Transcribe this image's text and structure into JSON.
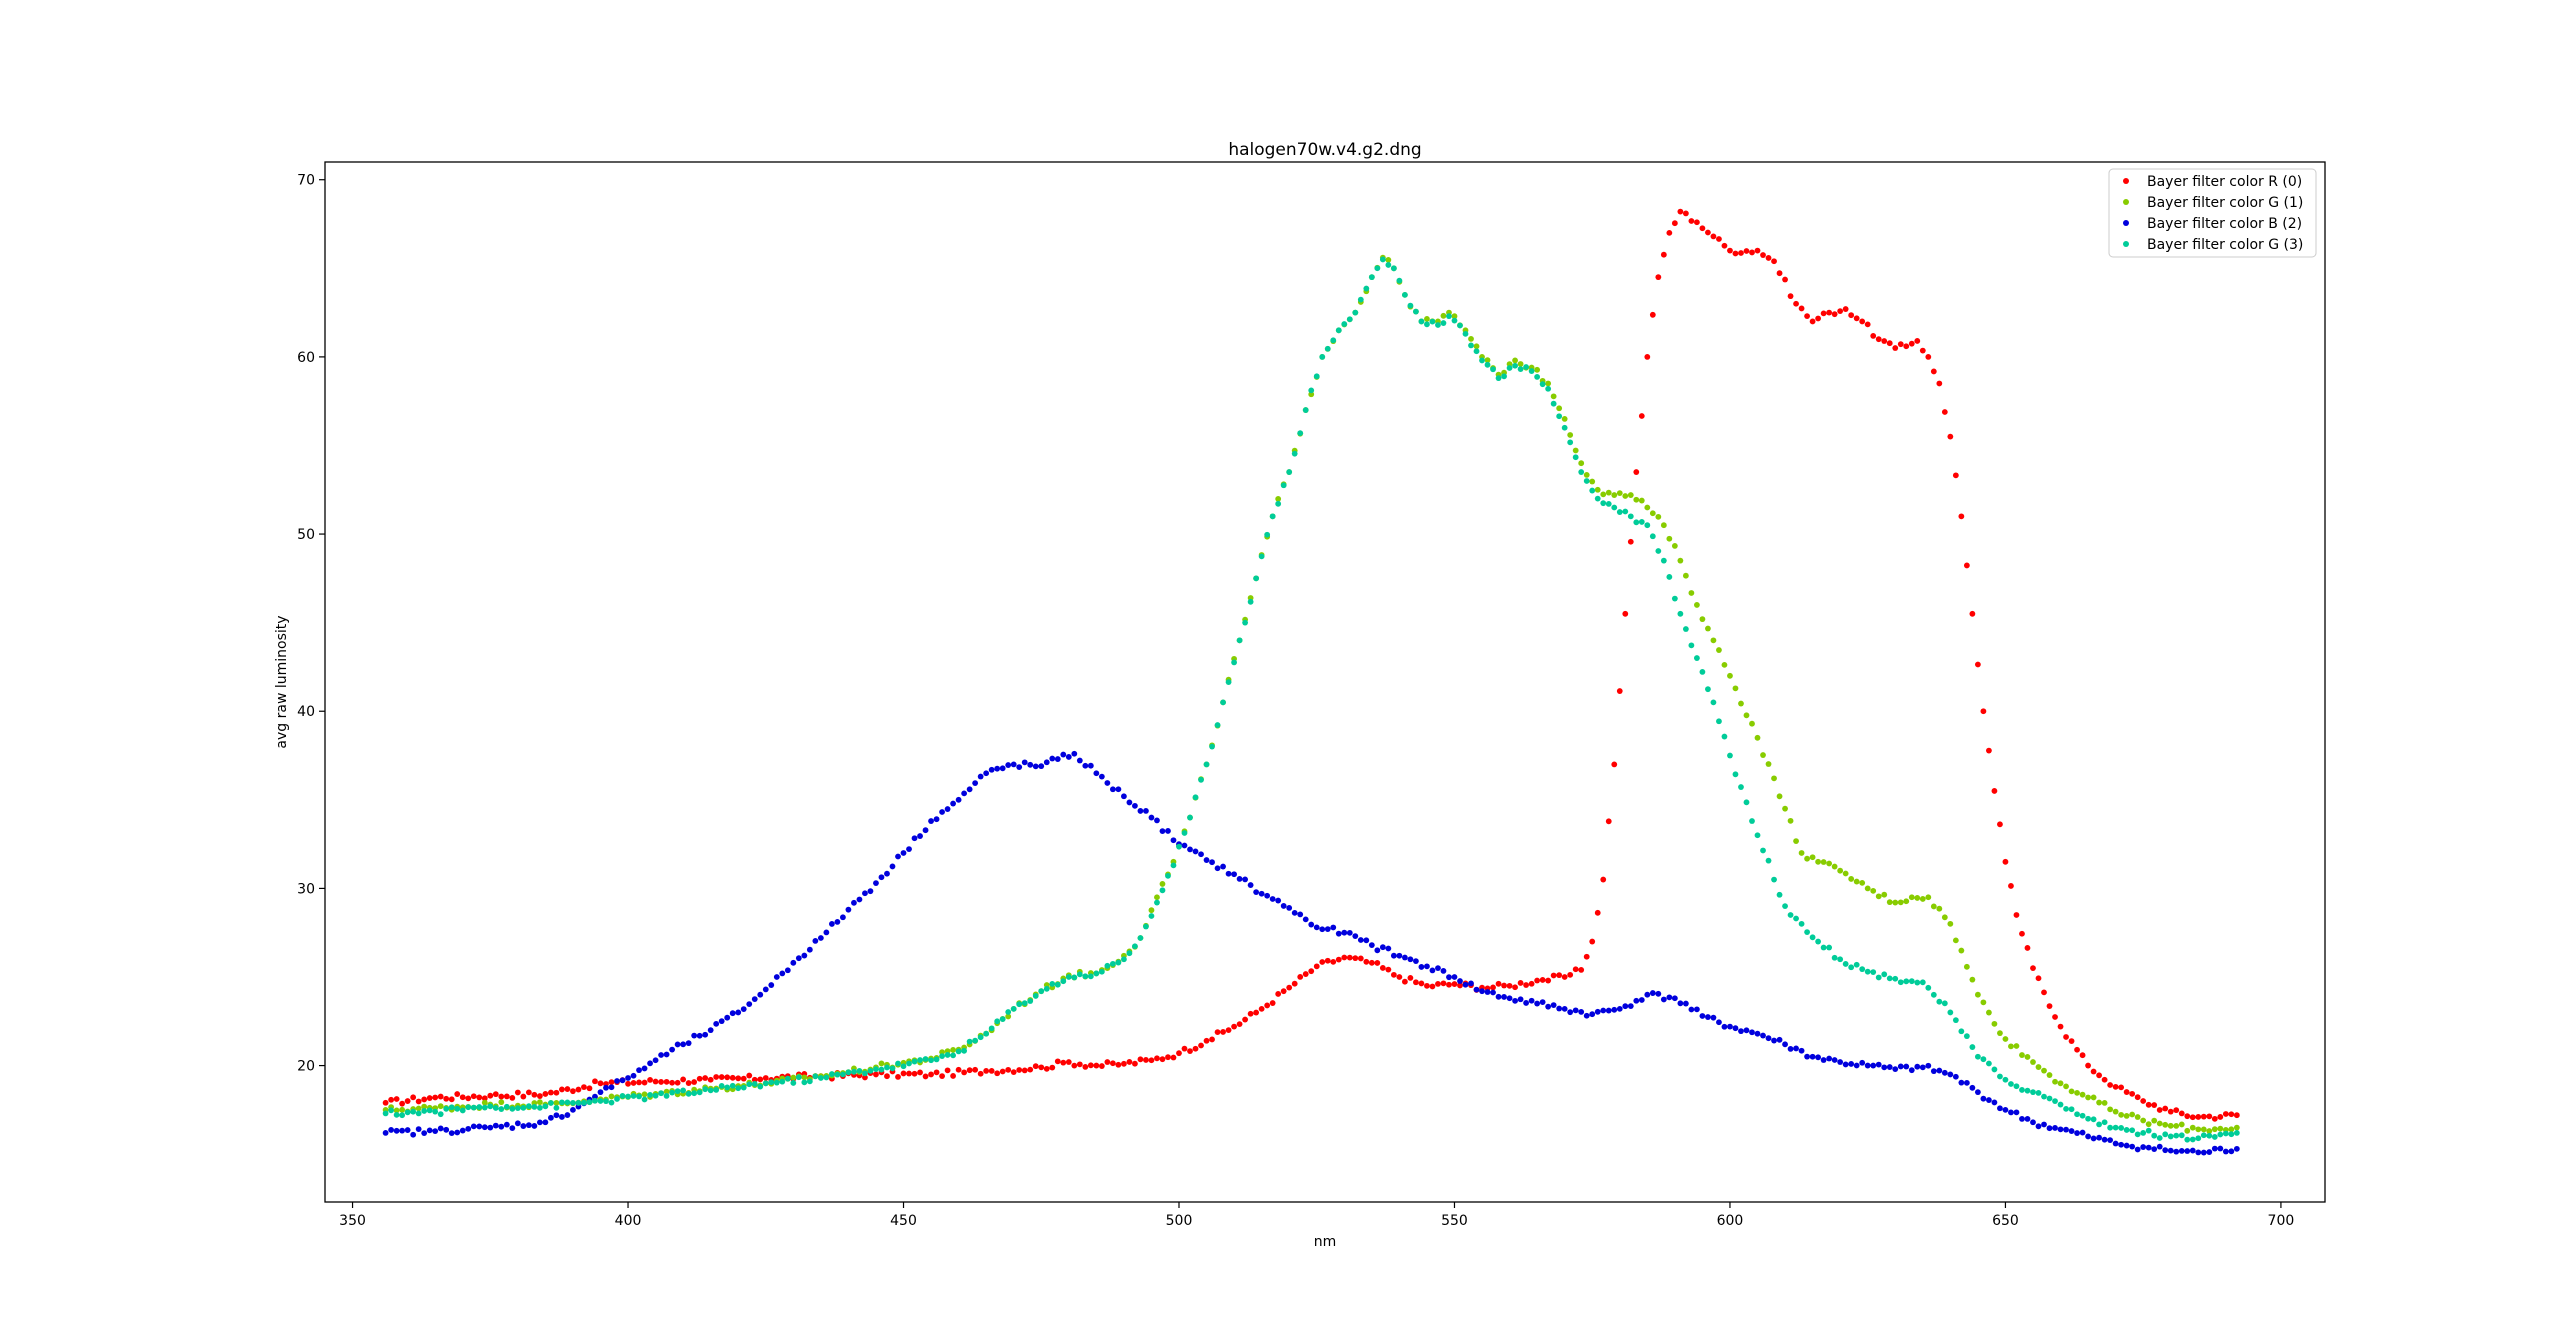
{
  "chart_data": {
    "type": "scatter",
    "title": "halogen70w.v4.g2.dng",
    "xlabel": "nm",
    "ylabel": "avg raw luminosity",
    "xlim": [
      345,
      708
    ],
    "ylim": [
      12.3,
      71.0
    ],
    "xticks": [
      350,
      400,
      450,
      500,
      550,
      600,
      650,
      700
    ],
    "yticks": [
      20,
      30,
      40,
      50,
      60,
      70
    ],
    "grid": false,
    "legend_position": "top-right",
    "series": [
      {
        "name": "Bayer filter color R (0)",
        "color": "#ff0000",
        "points": [
          [
            356,
            17.9
          ],
          [
            365,
            18.2
          ],
          [
            375,
            18.3
          ],
          [
            385,
            18.4
          ],
          [
            395,
            19.0
          ],
          [
            405,
            19.1
          ],
          [
            415,
            19.2
          ],
          [
            425,
            19.3
          ],
          [
            435,
            19.4
          ],
          [
            445,
            19.5
          ],
          [
            455,
            19.5
          ],
          [
            465,
            19.7
          ],
          [
            475,
            19.9
          ],
          [
            480,
            20.2
          ],
          [
            485,
            20.0
          ],
          [
            490,
            20.1
          ],
          [
            495,
            20.3
          ],
          [
            500,
            20.7
          ],
          [
            505,
            21.4
          ],
          [
            510,
            22.2
          ],
          [
            515,
            23.2
          ],
          [
            520,
            24.4
          ],
          [
            525,
            25.6
          ],
          [
            530,
            26.1
          ],
          [
            535,
            25.8
          ],
          [
            540,
            25.0
          ],
          [
            545,
            24.5
          ],
          [
            550,
            24.6
          ],
          [
            555,
            24.4
          ],
          [
            560,
            24.5
          ],
          [
            565,
            24.8
          ],
          [
            570,
            25.0
          ],
          [
            573,
            25.4
          ],
          [
            575,
            27.0
          ],
          [
            577,
            30.5
          ],
          [
            579,
            37.0
          ],
          [
            581,
            45.5
          ],
          [
            583,
            53.5
          ],
          [
            585,
            60.0
          ],
          [
            587,
            64.5
          ],
          [
            589,
            67.0
          ],
          [
            591,
            68.2
          ],
          [
            594,
            67.6
          ],
          [
            597,
            66.8
          ],
          [
            600,
            66.0
          ],
          [
            605,
            66.0
          ],
          [
            608,
            65.4
          ],
          [
            612,
            63.0
          ],
          [
            615,
            62.0
          ],
          [
            618,
            62.5
          ],
          [
            621,
            62.7
          ],
          [
            624,
            62.0
          ],
          [
            627,
            61.0
          ],
          [
            630,
            60.5
          ],
          [
            632,
            60.6
          ],
          [
            634,
            60.9
          ],
          [
            636,
            60.0
          ],
          [
            638,
            58.5
          ],
          [
            640,
            55.5
          ],
          [
            642,
            51.0
          ],
          [
            644,
            45.5
          ],
          [
            646,
            40.0
          ],
          [
            648,
            35.5
          ],
          [
            650,
            31.5
          ],
          [
            652,
            28.5
          ],
          [
            655,
            25.5
          ],
          [
            660,
            22.2
          ],
          [
            665,
            20.0
          ],
          [
            670,
            18.8
          ],
          [
            675,
            18.0
          ],
          [
            680,
            17.4
          ],
          [
            685,
            17.1
          ],
          [
            692,
            17.2
          ]
        ]
      },
      {
        "name": "Bayer filter color G (1)",
        "color": "#88cc00",
        "points": [
          [
            356,
            17.5
          ],
          [
            365,
            17.6
          ],
          [
            375,
            17.8
          ],
          [
            385,
            17.8
          ],
          [
            395,
            18.1
          ],
          [
            405,
            18.4
          ],
          [
            415,
            18.7
          ],
          [
            425,
            19.0
          ],
          [
            435,
            19.4
          ],
          [
            445,
            19.9
          ],
          [
            455,
            20.4
          ],
          [
            460,
            20.9
          ],
          [
            465,
            21.8
          ],
          [
            470,
            23.2
          ],
          [
            475,
            24.2
          ],
          [
            480,
            25.1
          ],
          [
            485,
            25.2
          ],
          [
            490,
            26.2
          ],
          [
            493,
            27.2
          ],
          [
            496,
            29.5
          ],
          [
            499,
            31.5
          ],
          [
            502,
            34.0
          ],
          [
            505,
            37.0
          ],
          [
            508,
            40.5
          ],
          [
            511,
            44.0
          ],
          [
            514,
            47.5
          ],
          [
            517,
            51.0
          ],
          [
            520,
            53.5
          ],
          [
            523,
            57.0
          ],
          [
            526,
            60.0
          ],
          [
            529,
            61.5
          ],
          [
            532,
            62.5
          ],
          [
            535,
            64.5
          ],
          [
            537,
            65.6
          ],
          [
            539,
            65.0
          ],
          [
            541,
            63.5
          ],
          [
            544,
            62.0
          ],
          [
            547,
            62.0
          ],
          [
            549,
            62.5
          ],
          [
            552,
            61.5
          ],
          [
            555,
            60.0
          ],
          [
            558,
            59.0
          ],
          [
            561,
            59.8
          ],
          [
            564,
            59.4
          ],
          [
            567,
            58.5
          ],
          [
            570,
            56.5
          ],
          [
            573,
            54.0
          ],
          [
            576,
            52.5
          ],
          [
            579,
            52.2
          ],
          [
            582,
            52.2
          ],
          [
            585,
            51.5
          ],
          [
            588,
            50.5
          ],
          [
            591,
            48.5
          ],
          [
            594,
            46.0
          ],
          [
            597,
            44.0
          ],
          [
            600,
            42.0
          ],
          [
            605,
            38.5
          ],
          [
            610,
            34.5
          ],
          [
            613,
            32.0
          ],
          [
            616,
            31.5
          ],
          [
            620,
            31.0
          ],
          [
            625,
            30.0
          ],
          [
            630,
            29.2
          ],
          [
            633,
            29.5
          ],
          [
            636,
            29.5
          ],
          [
            640,
            28.0
          ],
          [
            645,
            24.0
          ],
          [
            650,
            21.5
          ],
          [
            655,
            20.2
          ],
          [
            660,
            19.0
          ],
          [
            665,
            18.2
          ],
          [
            670,
            17.4
          ],
          [
            675,
            16.9
          ],
          [
            680,
            16.6
          ],
          [
            685,
            16.4
          ],
          [
            692,
            16.5
          ]
        ]
      },
      {
        "name": "Bayer filter color B (2)",
        "color": "#0000dd",
        "points": [
          [
            356,
            16.2
          ],
          [
            365,
            16.3
          ],
          [
            375,
            16.5
          ],
          [
            385,
            16.8
          ],
          [
            390,
            17.5
          ],
          [
            395,
            18.5
          ],
          [
            400,
            19.3
          ],
          [
            405,
            20.3
          ],
          [
            410,
            21.2
          ],
          [
            415,
            22.0
          ],
          [
            420,
            23.0
          ],
          [
            425,
            24.3
          ],
          [
            430,
            25.8
          ],
          [
            435,
            27.2
          ],
          [
            440,
            28.8
          ],
          [
            445,
            30.3
          ],
          [
            450,
            32.0
          ],
          [
            455,
            33.8
          ],
          [
            460,
            35.0
          ],
          [
            465,
            36.5
          ],
          [
            470,
            37.0
          ],
          [
            475,
            36.9
          ],
          [
            478,
            37.3
          ],
          [
            481,
            37.6
          ],
          [
            485,
            36.5
          ],
          [
            490,
            35.2
          ],
          [
            495,
            34.0
          ],
          [
            500,
            32.5
          ],
          [
            505,
            31.6
          ],
          [
            510,
            30.8
          ],
          [
            515,
            29.7
          ],
          [
            520,
            28.9
          ],
          [
            525,
            27.8
          ],
          [
            530,
            27.5
          ],
          [
            535,
            26.8
          ],
          [
            540,
            26.2
          ],
          [
            545,
            25.6
          ],
          [
            550,
            25.0
          ],
          [
            555,
            24.2
          ],
          [
            560,
            23.8
          ],
          [
            565,
            23.5
          ],
          [
            570,
            23.2
          ],
          [
            575,
            22.9
          ],
          [
            580,
            23.2
          ],
          [
            585,
            24.0
          ],
          [
            590,
            23.8
          ],
          [
            595,
            22.8
          ],
          [
            600,
            22.2
          ],
          [
            605,
            21.8
          ],
          [
            610,
            21.2
          ],
          [
            615,
            20.5
          ],
          [
            620,
            20.2
          ],
          [
            625,
            20.0
          ],
          [
            630,
            19.8
          ],
          [
            635,
            19.9
          ],
          [
            640,
            19.5
          ],
          [
            645,
            18.5
          ],
          [
            650,
            17.5
          ],
          [
            655,
            16.8
          ],
          [
            660,
            16.4
          ],
          [
            665,
            16.0
          ],
          [
            670,
            15.6
          ],
          [
            675,
            15.4
          ],
          [
            680,
            15.2
          ],
          [
            685,
            15.1
          ],
          [
            692,
            15.3
          ]
        ]
      },
      {
        "name": "Bayer filter color G (3)",
        "color": "#00cc99",
        "points": [
          [
            356,
            17.3
          ],
          [
            365,
            17.4
          ],
          [
            375,
            17.7
          ],
          [
            385,
            17.7
          ],
          [
            395,
            18.0
          ],
          [
            405,
            18.3
          ],
          [
            415,
            18.6
          ],
          [
            425,
            19.0
          ],
          [
            435,
            19.3
          ],
          [
            445,
            19.8
          ],
          [
            455,
            20.3
          ],
          [
            460,
            20.8
          ],
          [
            465,
            21.8
          ],
          [
            470,
            23.2
          ],
          [
            475,
            24.2
          ],
          [
            480,
            25.0
          ],
          [
            485,
            25.2
          ],
          [
            490,
            26.0
          ],
          [
            493,
            27.2
          ],
          [
            496,
            29.2
          ],
          [
            499,
            31.3
          ],
          [
            502,
            34.0
          ],
          [
            505,
            37.0
          ],
          [
            508,
            40.5
          ],
          [
            511,
            44.0
          ],
          [
            514,
            47.5
          ],
          [
            517,
            51.0
          ],
          [
            520,
            53.5
          ],
          [
            523,
            57.0
          ],
          [
            526,
            60.0
          ],
          [
            529,
            61.5
          ],
          [
            532,
            62.5
          ],
          [
            535,
            64.5
          ],
          [
            537,
            65.5
          ],
          [
            539,
            65.0
          ],
          [
            541,
            63.5
          ],
          [
            544,
            62.0
          ],
          [
            547,
            61.8
          ],
          [
            549,
            62.3
          ],
          [
            552,
            61.3
          ],
          [
            555,
            59.8
          ],
          [
            558,
            58.8
          ],
          [
            561,
            59.5
          ],
          [
            564,
            59.2
          ],
          [
            567,
            58.2
          ],
          [
            570,
            56.0
          ],
          [
            573,
            53.5
          ],
          [
            576,
            52.0
          ],
          [
            579,
            51.5
          ],
          [
            582,
            51.0
          ],
          [
            585,
            50.5
          ],
          [
            588,
            48.5
          ],
          [
            591,
            45.5
          ],
          [
            594,
            43.0
          ],
          [
            597,
            40.5
          ],
          [
            600,
            37.5
          ],
          [
            605,
            33.0
          ],
          [
            610,
            29.0
          ],
          [
            613,
            28.0
          ],
          [
            616,
            27.0
          ],
          [
            620,
            26.0
          ],
          [
            625,
            25.3
          ],
          [
            630,
            24.9
          ],
          [
            635,
            24.7
          ],
          [
            640,
            23.0
          ],
          [
            645,
            20.5
          ],
          [
            650,
            19.2
          ],
          [
            655,
            18.5
          ],
          [
            660,
            17.8
          ],
          [
            665,
            17.0
          ],
          [
            670,
            16.5
          ],
          [
            675,
            16.2
          ],
          [
            680,
            16.0
          ],
          [
            685,
            15.9
          ],
          [
            692,
            16.2
          ]
        ]
      }
    ]
  }
}
